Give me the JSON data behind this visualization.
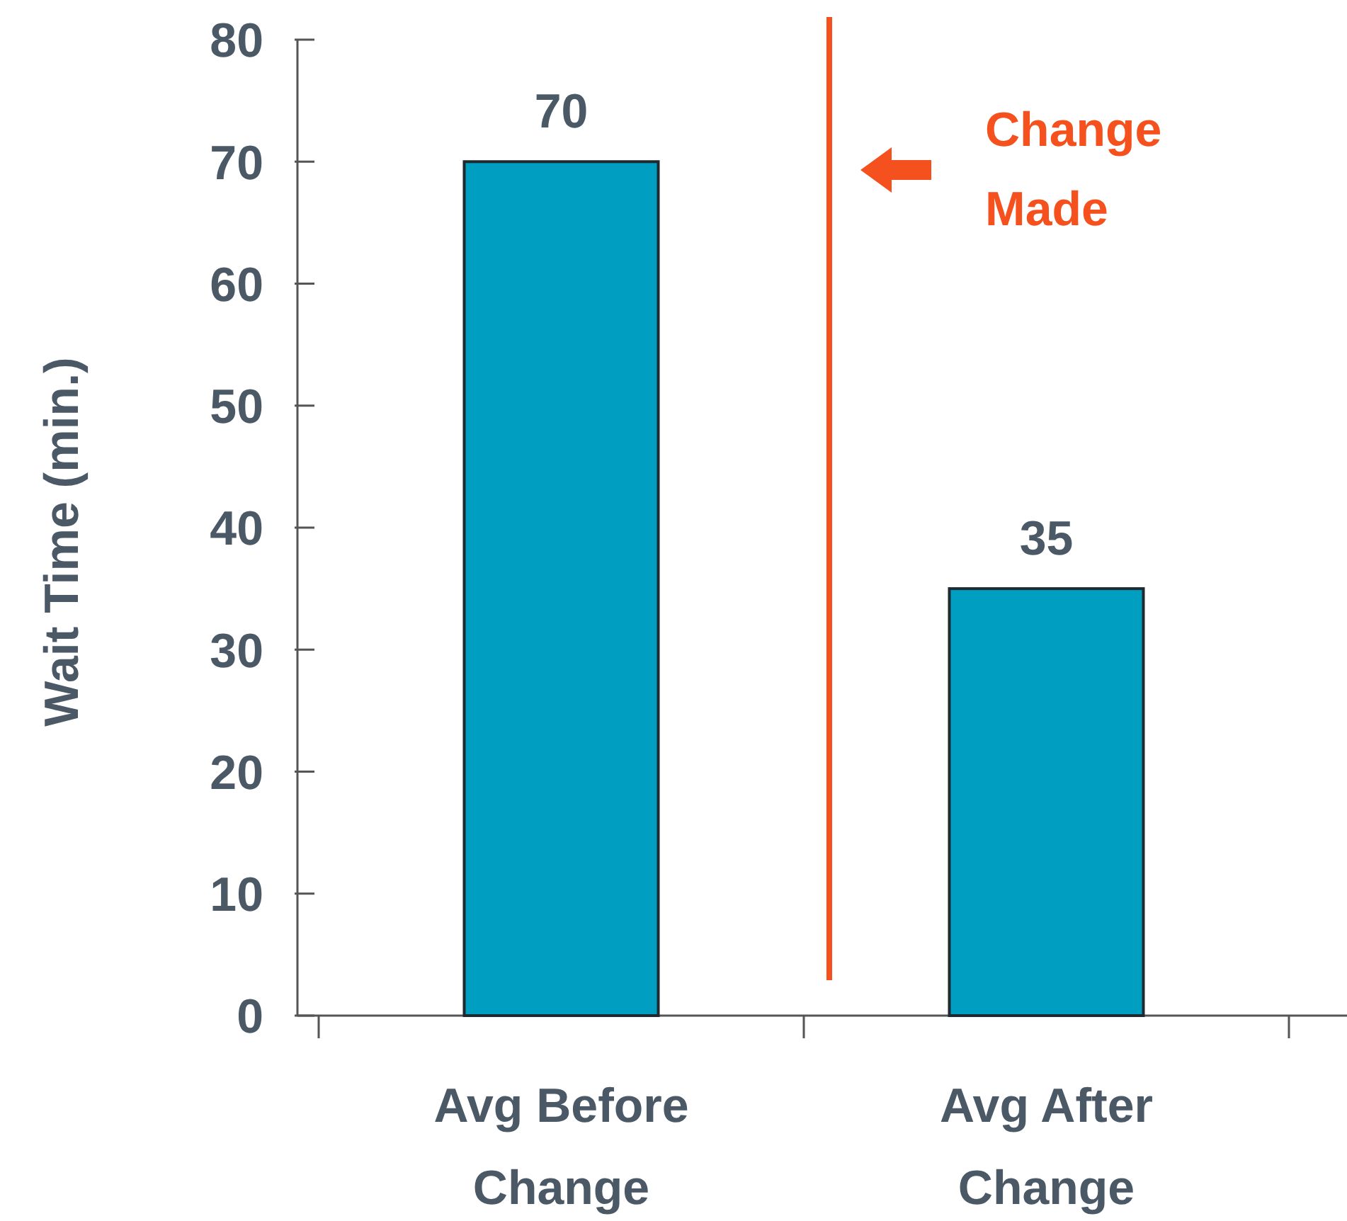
{
  "chart_data": {
    "type": "bar",
    "ylabel": "Wait Time (min.)",
    "categories": [
      "Avg Before Change",
      "Avg After Change"
    ],
    "values": [
      70,
      35
    ],
    "color": "#009ec0",
    "ylim": [
      0,
      80
    ],
    "yticks": [
      0,
      10,
      20,
      30,
      40,
      50,
      60,
      70,
      80
    ],
    "grid": false,
    "data_labels": true,
    "annotations": [
      "Change Made"
    ]
  }
}
